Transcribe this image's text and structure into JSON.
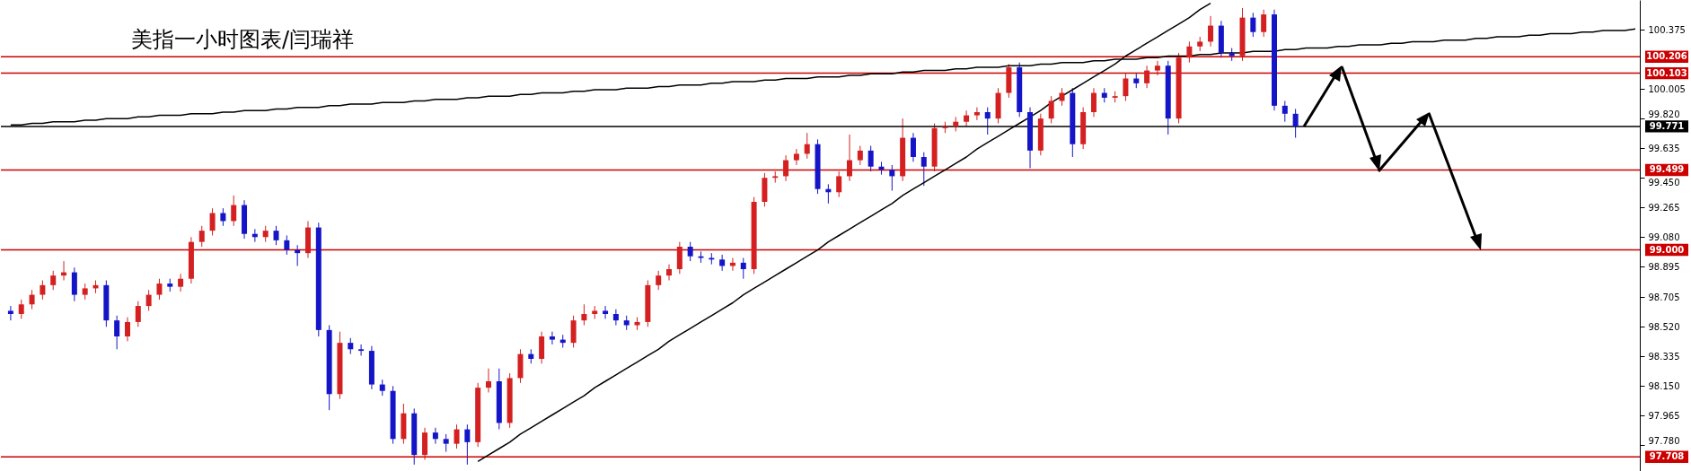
{
  "chart_data": {
    "type": "candlestick",
    "title": "美指一小时图表/闫瑞祥",
    "categories": [
      null,
      null,
      null,
      null,
      null,
      null,
      null,
      null,
      null,
      null,
      null,
      null,
      null,
      null,
      null,
      null,
      null,
      null,
      null,
      null,
      null,
      null,
      null,
      null,
      null,
      null,
      null,
      null,
      null,
      null,
      null,
      null,
      null,
      null,
      null,
      null,
      null,
      null,
      null,
      null,
      null,
      null,
      null,
      null,
      null,
      null,
      null,
      null,
      null,
      null,
      null,
      null,
      null,
      null,
      null,
      null,
      null,
      null,
      null,
      null,
      null,
      null,
      null,
      null,
      null,
      null,
      null,
      null,
      null,
      null,
      null,
      null,
      null,
      null,
      null,
      null,
      null,
      null,
      null,
      null,
      null,
      null,
      null,
      null,
      null,
      null,
      null,
      null,
      null,
      null,
      null,
      null,
      null,
      null,
      null,
      null,
      null,
      null,
      null,
      null,
      null,
      null,
      null,
      null,
      null,
      null,
      null,
      null,
      null,
      null,
      null,
      null,
      null,
      null,
      null,
      null,
      null,
      null,
      null,
      null,
      null,
      null,
      null,
      null,
      null,
      null,
      null,
      null,
      null,
      null,
      null,
      null,
      null,
      null,
      null,
      null,
      null,
      null,
      null,
      null,
      null,
      null,
      null,
      null,
      null,
      null,
      null,
      null,
      null,
      null,
      null,
      null,
      null,
      null
    ],
    "ohlc": [
      [
        98.62,
        98.65,
        98.56,
        98.6
      ],
      [
        98.6,
        98.69,
        98.57,
        98.66
      ],
      [
        98.66,
        98.75,
        98.63,
        98.72
      ],
      [
        98.72,
        98.81,
        98.69,
        98.78
      ],
      [
        98.78,
        98.87,
        98.75,
        98.84
      ],
      [
        98.84,
        98.93,
        98.81,
        98.86
      ],
      [
        98.86,
        98.89,
        98.68,
        98.72
      ],
      [
        98.72,
        98.79,
        98.69,
        98.76
      ],
      [
        98.76,
        98.81,
        98.73,
        98.78
      ],
      [
        98.78,
        98.81,
        98.52,
        98.56
      ],
      [
        98.56,
        98.59,
        98.38,
        98.46
      ],
      [
        98.46,
        98.58,
        98.43,
        98.55
      ],
      [
        98.55,
        98.68,
        98.52,
        98.65
      ],
      [
        98.65,
        98.75,
        98.62,
        98.72
      ],
      [
        98.72,
        98.82,
        98.69,
        98.79
      ],
      [
        98.79,
        98.82,
        98.74,
        98.77
      ],
      [
        98.77,
        98.85,
        98.74,
        98.82
      ],
      [
        98.82,
        99.08,
        98.79,
        99.05
      ],
      [
        99.05,
        99.15,
        99.02,
        99.12
      ],
      [
        99.12,
        99.26,
        99.09,
        99.23
      ],
      [
        99.23,
        99.26,
        99.15,
        99.18
      ],
      [
        99.18,
        99.34,
        99.15,
        99.28
      ],
      [
        99.28,
        99.31,
        99.07,
        99.1
      ],
      [
        99.1,
        99.13,
        99.05,
        99.08
      ],
      [
        99.08,
        99.15,
        99.05,
        99.12
      ],
      [
        99.12,
        99.15,
        99.03,
        99.06
      ],
      [
        99.06,
        99.09,
        98.97,
        99.0
      ],
      [
        99.0,
        99.03,
        98.9,
        98.98
      ],
      [
        98.98,
        99.18,
        98.95,
        99.14
      ],
      [
        99.14,
        99.17,
        98.46,
        98.5
      ],
      [
        98.5,
        98.53,
        98.0,
        98.1
      ],
      [
        98.1,
        98.49,
        98.07,
        98.42
      ],
      [
        98.42,
        98.45,
        98.35,
        98.38
      ],
      [
        98.38,
        98.41,
        98.34,
        98.37
      ],
      [
        98.37,
        98.4,
        98.13,
        98.16
      ],
      [
        98.16,
        98.19,
        98.09,
        98.12
      ],
      [
        98.12,
        98.15,
        97.79,
        97.82
      ],
      [
        97.82,
        98.04,
        97.79,
        97.98
      ],
      [
        97.98,
        98.01,
        97.66,
        97.72
      ],
      [
        97.72,
        97.89,
        97.69,
        97.86
      ],
      [
        97.86,
        97.89,
        97.79,
        97.82
      ],
      [
        97.82,
        97.85,
        97.74,
        97.79
      ],
      [
        97.79,
        97.91,
        97.76,
        97.88
      ],
      [
        97.88,
        97.91,
        97.66,
        97.8
      ],
      [
        97.8,
        98.17,
        97.77,
        98.14
      ],
      [
        98.14,
        98.26,
        98.11,
        98.18
      ],
      [
        98.18,
        98.26,
        97.88,
        97.92
      ],
      [
        97.92,
        98.23,
        97.89,
        98.2
      ],
      [
        98.2,
        98.38,
        98.17,
        98.35
      ],
      [
        98.35,
        98.38,
        98.29,
        98.32
      ],
      [
        98.32,
        98.49,
        98.29,
        98.46
      ],
      [
        98.46,
        98.49,
        98.41,
        98.44
      ],
      [
        98.44,
        98.47,
        98.39,
        98.42
      ],
      [
        98.42,
        98.59,
        98.39,
        98.56
      ],
      [
        98.56,
        98.66,
        98.53,
        98.6
      ],
      [
        98.6,
        98.65,
        98.57,
        98.62
      ],
      [
        98.62,
        98.65,
        98.57,
        98.6
      ],
      [
        98.6,
        98.63,
        98.53,
        98.56
      ],
      [
        98.56,
        98.59,
        98.5,
        98.53
      ],
      [
        98.53,
        98.58,
        98.5,
        98.55
      ],
      [
        98.55,
        98.81,
        98.52,
        98.78
      ],
      [
        98.78,
        98.87,
        98.75,
        98.84
      ],
      [
        98.84,
        98.91,
        98.81,
        98.88
      ],
      [
        98.88,
        99.05,
        98.85,
        99.02
      ],
      [
        99.02,
        99.05,
        98.93,
        98.96
      ],
      [
        98.96,
        98.99,
        98.92,
        98.95
      ],
      [
        98.95,
        98.98,
        98.91,
        98.94
      ],
      [
        98.94,
        98.97,
        98.87,
        98.9
      ],
      [
        98.9,
        98.95,
        98.87,
        98.92
      ],
      [
        98.92,
        98.95,
        98.82,
        98.88
      ],
      [
        98.88,
        99.33,
        98.85,
        99.3
      ],
      [
        99.3,
        99.48,
        99.27,
        99.45
      ],
      [
        99.45,
        99.49,
        99.42,
        99.46
      ],
      [
        99.46,
        99.59,
        99.43,
        99.56
      ],
      [
        99.56,
        99.63,
        99.53,
        99.6
      ],
      [
        99.6,
        99.73,
        99.57,
        99.66
      ],
      [
        99.66,
        99.69,
        99.35,
        99.38
      ],
      [
        99.38,
        99.41,
        99.29,
        99.36
      ],
      [
        99.36,
        99.49,
        99.33,
        99.46
      ],
      [
        99.46,
        99.72,
        99.43,
        99.56
      ],
      [
        99.56,
        99.65,
        99.53,
        99.62
      ],
      [
        99.62,
        99.65,
        99.49,
        99.52
      ],
      [
        99.52,
        99.55,
        99.47,
        99.5
      ],
      [
        99.5,
        99.53,
        99.37,
        99.46
      ],
      [
        99.46,
        99.82,
        99.43,
        99.7
      ],
      [
        99.7,
        99.73,
        99.55,
        99.58
      ],
      [
        99.58,
        99.61,
        99.4,
        99.52
      ],
      [
        99.52,
        99.79,
        99.49,
        99.76
      ],
      [
        99.76,
        99.8,
        99.73,
        99.77
      ],
      [
        99.77,
        99.83,
        99.74,
        99.8
      ],
      [
        99.8,
        99.87,
        99.77,
        99.84
      ],
      [
        99.84,
        99.89,
        99.81,
        99.86
      ],
      [
        99.86,
        99.89,
        99.72,
        99.82
      ],
      [
        99.82,
        100.01,
        99.79,
        99.98
      ],
      [
        99.98,
        100.16,
        99.95,
        100.14
      ],
      [
        100.14,
        100.17,
        99.83,
        99.86
      ],
      [
        99.86,
        99.89,
        99.51,
        99.62
      ],
      [
        99.62,
        99.85,
        99.59,
        99.82
      ],
      [
        99.82,
        99.96,
        99.79,
        99.93
      ],
      [
        99.93,
        100.01,
        99.9,
        99.98
      ],
      [
        99.98,
        100.01,
        99.58,
        99.66
      ],
      [
        99.66,
        99.89,
        99.63,
        99.86
      ],
      [
        99.86,
        100.01,
        99.83,
        99.98
      ],
      [
        99.98,
        100.01,
        99.92,
        99.95
      ],
      [
        99.95,
        99.99,
        99.92,
        99.96
      ],
      [
        99.96,
        100.1,
        99.93,
        100.07
      ],
      [
        100.07,
        100.1,
        100.01,
        100.04
      ],
      [
        100.04,
        100.15,
        100.01,
        100.12
      ],
      [
        100.12,
        100.18,
        100.09,
        100.15
      ],
      [
        100.15,
        100.18,
        99.72,
        99.82
      ],
      [
        99.82,
        100.23,
        99.79,
        100.2
      ],
      [
        100.2,
        100.3,
        100.17,
        100.27
      ],
      [
        100.27,
        100.33,
        100.24,
        100.3
      ],
      [
        100.3,
        100.46,
        100.27,
        100.4
      ],
      [
        100.4,
        100.43,
        100.2,
        100.23
      ],
      [
        100.23,
        100.26,
        100.18,
        100.21
      ],
      [
        100.21,
        100.51,
        100.18,
        100.45
      ],
      [
        100.45,
        100.48,
        100.33,
        100.36
      ],
      [
        100.36,
        100.5,
        100.33,
        100.47
      ],
      [
        100.47,
        100.5,
        99.87,
        99.9
      ],
      [
        99.9,
        99.93,
        99.8,
        99.85
      ],
      [
        99.85,
        99.88,
        99.7,
        99.77
      ],
      null,
      null,
      null,
      null,
      null,
      null,
      null,
      null,
      null,
      null,
      null,
      null,
      null,
      null,
      null,
      null,
      null,
      null,
      null,
      null,
      null,
      null,
      null,
      null,
      null,
      null,
      null,
      null,
      null,
      null,
      null,
      null
    ],
    "colors": [
      "#1515c8",
      "#d42020",
      "#d42020",
      "#d42020",
      "#d42020",
      "#d42020",
      "#1515c8",
      "#d42020",
      "#d42020",
      "#1515c8",
      "#1515c8",
      "#d42020",
      "#d42020",
      "#d42020",
      "#d42020",
      "#1515c8",
      "#d42020",
      "#d42020",
      "#d42020",
      "#d42020",
      "#1515c8",
      "#d42020",
      "#1515c8",
      "#1515c8",
      "#d42020",
      "#1515c8",
      "#1515c8",
      "#1515c8",
      "#d42020",
      "#1515c8",
      "#1515c8",
      "#d42020",
      "#1515c8",
      "#1515c8",
      "#1515c8",
      "#1515c8",
      "#1515c8",
      "#d42020",
      "#1515c8",
      "#d42020",
      "#1515c8",
      "#1515c8",
      "#d42020",
      "#1515c8",
      "#d42020",
      "#d42020",
      "#1515c8",
      "#d42020",
      "#d42020",
      "#1515c8",
      "#d42020",
      "#1515c8",
      "#1515c8",
      "#d42020",
      "#d42020",
      "#d42020",
      "#1515c8",
      "#1515c8",
      "#1515c8",
      "#d42020",
      "#d42020",
      "#d42020",
      "#d42020",
      "#d42020",
      "#1515c8",
      "#1515c8",
      "#1515c8",
      "#1515c8",
      "#d42020",
      "#1515c8",
      "#d42020",
      "#d42020",
      "#d42020",
      "#d42020",
      "#d42020",
      "#d42020",
      "#1515c8",
      "#1515c8",
      "#d42020",
      "#d42020",
      "#d42020",
      "#1515c8",
      "#1515c8",
      "#1515c8",
      "#d42020",
      "#1515c8",
      "#1515c8",
      "#d42020",
      "#d42020",
      "#d42020",
      "#d42020",
      "#d42020",
      "#1515c8",
      "#d42020",
      "#d42020",
      "#1515c8",
      "#1515c8",
      "#d42020",
      "#d42020",
      "#d42020",
      "#1515c8",
      "#d42020",
      "#d42020",
      "#1515c8",
      "#d42020",
      "#d42020",
      "#1515c8",
      "#d42020",
      "#d42020",
      "#1515c8",
      "#d42020",
      "#d42020",
      "#d42020",
      "#d42020",
      "#1515c8",
      "#1515c8",
      "#d42020",
      "#1515c8",
      "#d42020",
      "#1515c8",
      "#1515c8",
      "#1515c8",
      null,
      null,
      null,
      null,
      null,
      null,
      null,
      null,
      null,
      null,
      null,
      null,
      null,
      null,
      null,
      null,
      null,
      null,
      null,
      null,
      null,
      null,
      null,
      null,
      null,
      null,
      null,
      null,
      null,
      null,
      null,
      null
    ],
    "series": [
      {
        "type": "line",
        "color": "#000000",
        "values": [
          99.78,
          99.78,
          99.79,
          99.79,
          99.8,
          99.8,
          99.8,
          99.81,
          99.81,
          99.82,
          99.82,
          99.82,
          99.83,
          99.83,
          99.84,
          99.84,
          99.84,
          99.85,
          99.85,
          99.85,
          99.86,
          99.86,
          99.87,
          99.87,
          99.87,
          99.88,
          99.88,
          99.89,
          99.89,
          99.89,
          99.9,
          99.9,
          99.91,
          99.91,
          99.91,
          99.92,
          99.92,
          99.92,
          99.93,
          99.93,
          99.94,
          99.94,
          99.94,
          99.95,
          99.95,
          99.96,
          99.96,
          99.96,
          99.97,
          99.97,
          99.98,
          99.98,
          99.98,
          99.99,
          99.99,
          100.0,
          100.0,
          100.0,
          100.01,
          100.01,
          100.01,
          100.02,
          100.02,
          100.03,
          100.03,
          100.03,
          100.04,
          100.04,
          100.05,
          100.05,
          100.05,
          100.06,
          100.06,
          100.07,
          100.07,
          100.07,
          100.08,
          100.08,
          100.08,
          100.09,
          100.09,
          100.1,
          100.1,
          100.1,
          100.11,
          100.11,
          100.12,
          100.12,
          100.12,
          100.13,
          100.13,
          100.14,
          100.14,
          100.14,
          100.15,
          100.15,
          100.15,
          100.16,
          100.16,
          100.17,
          100.17,
          100.17,
          100.18,
          100.18,
          100.19,
          100.19,
          100.19,
          100.2,
          100.2,
          100.21,
          100.21,
          100.21,
          100.22,
          100.22,
          100.23,
          100.23,
          100.23,
          100.24,
          100.24,
          100.24,
          100.25,
          100.25,
          100.26,
          100.26,
          100.26,
          100.27,
          100.27,
          100.28,
          100.28,
          100.28,
          100.29,
          100.29,
          100.3,
          100.3,
          100.3,
          100.31,
          100.31,
          100.31,
          100.32,
          100.32,
          100.33,
          100.33,
          100.33,
          100.34,
          100.34,
          100.35,
          100.35,
          100.35,
          100.36,
          100.36,
          100.37,
          100.37,
          100.37,
          100.38
        ]
      },
      {
        "type": "line",
        "color": "#000000",
        "values": [
          null,
          null,
          null,
          null,
          null,
          null,
          null,
          null,
          null,
          null,
          null,
          null,
          null,
          null,
          null,
          null,
          null,
          null,
          null,
          null,
          null,
          null,
          null,
          null,
          null,
          null,
          null,
          null,
          null,
          null,
          null,
          null,
          null,
          null,
          null,
          null,
          null,
          null,
          null,
          null,
          null,
          null,
          null,
          null,
          97.68,
          97.72,
          97.76,
          97.8,
          97.85,
          97.89,
          97.93,
          97.97,
          98.01,
          98.05,
          98.09,
          98.14,
          98.18,
          98.22,
          98.26,
          98.3,
          98.34,
          98.38,
          98.43,
          98.47,
          98.51,
          98.55,
          98.59,
          98.63,
          98.67,
          98.72,
          98.76,
          98.8,
          98.84,
          98.88,
          98.92,
          98.96,
          99.0,
          99.05,
          99.09,
          99.13,
          99.17,
          99.21,
          99.25,
          99.29,
          99.34,
          99.38,
          99.42,
          99.46,
          99.5,
          99.54,
          99.58,
          99.63,
          99.67,
          99.71,
          99.75,
          99.79,
          99.83,
          99.87,
          99.92,
          99.96,
          100.0,
          100.04,
          100.08,
          100.12,
          100.16,
          100.21,
          100.25,
          100.29,
          100.33,
          100.37,
          100.41,
          100.45,
          100.5,
          100.54,
          null,
          null,
          null,
          null,
          null,
          null,
          null,
          null,
          null,
          null,
          null,
          null,
          null,
          null,
          null,
          null,
          null,
          null,
          null,
          null,
          null,
          null,
          null,
          null,
          null,
          null,
          null,
          null,
          null,
          null,
          null,
          null,
          null,
          null,
          null,
          null,
          null,
          null,
          null,
          null
        ]
      }
    ],
    "ylim": [
      97.62,
      100.56
    ],
    "yticks": [
      {
        "value": 97.78,
        "label": "97.780"
      },
      97.965,
      {
        "value": 98.15,
        "label": "98.150"
      },
      98.335,
      {
        "value": 98.52,
        "label": "98.520"
      },
      98.705,
      98.895,
      {
        "value": 99.08,
        "label": "99.080"
      },
      99.265,
      {
        "value": 99.45,
        "label": "99.450"
      },
      99.635,
      {
        "value": 99.82,
        "label": "99.820"
      },
      100.005,
      100.375
    ],
    "ref_lines": [
      {
        "axis": "y",
        "value": 100.206,
        "label": "100.206",
        "color": "#cc0000"
      },
      {
        "axis": "y",
        "value": 100.103,
        "label": "100.103",
        "color": "#cc0000"
      },
      {
        "axis": "y",
        "value": 99.771,
        "label": "99.771",
        "color": "#000000"
      },
      {
        "axis": "y",
        "value": 99.499,
        "label": "99.499",
        "color": "#cc0000"
      },
      {
        "axis": "y",
        "value": 99.0,
        "label": "99.000",
        "color": "#cc0000"
      },
      {
        "axis": "y",
        "value": 97.708,
        "label": "97.708",
        "color": "#cc0000"
      }
    ],
    "grid": false,
    "tick_labels": "y"
  }
}
